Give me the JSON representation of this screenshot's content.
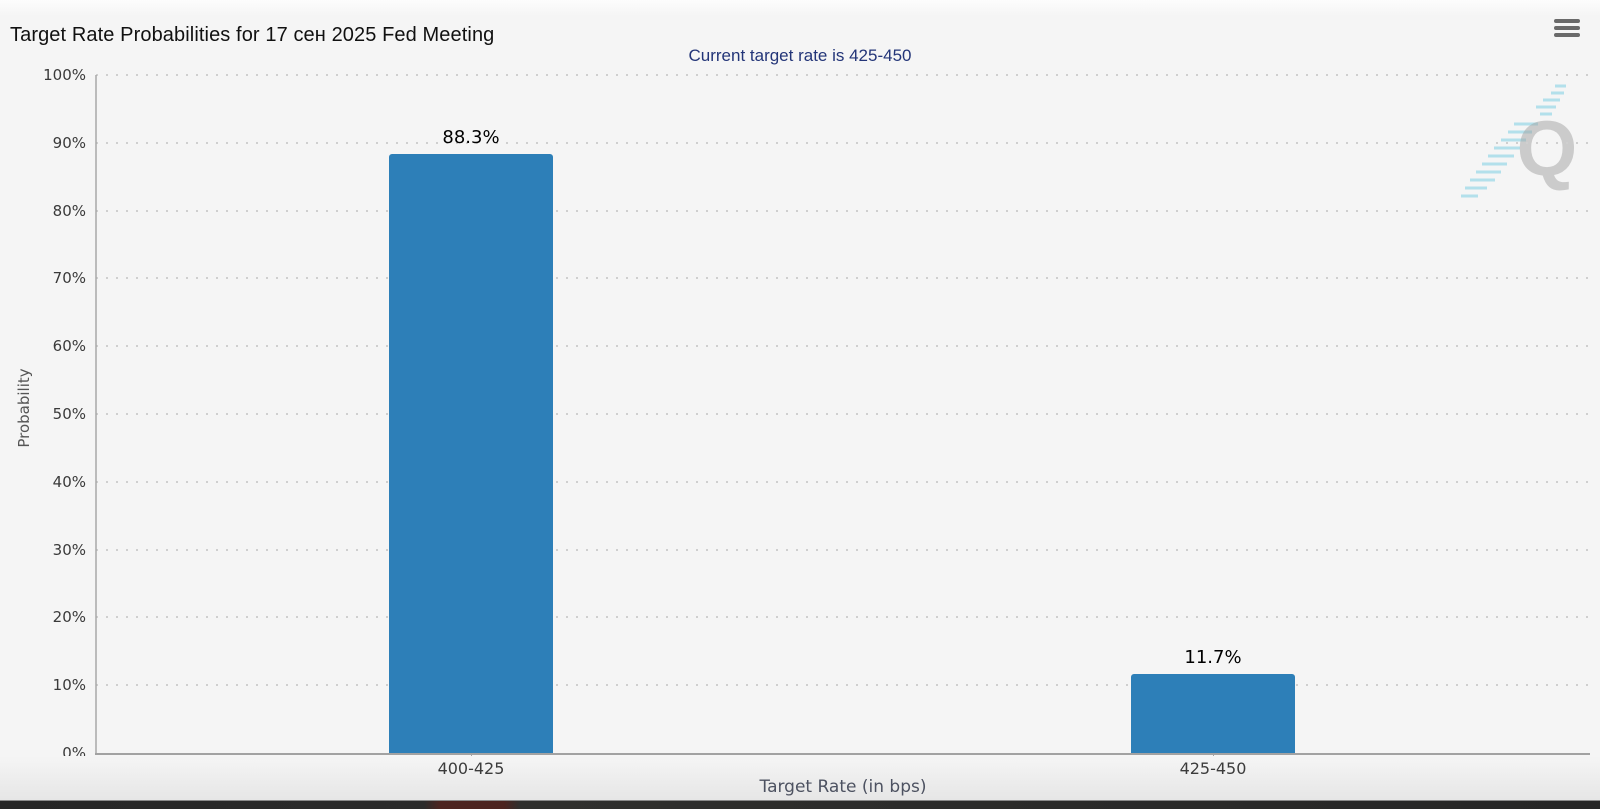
{
  "header": {
    "menu_icon": "hamburger-icon"
  },
  "chart_data": {
    "type": "bar",
    "title": "Target Rate Probabilities for 17 сен 2025 Fed Meeting",
    "subtitle": "Current target rate is 425-450",
    "xlabel": "Target Rate (in bps)",
    "ylabel": "Probability",
    "categories": [
      "400-425",
      "425-450"
    ],
    "values": [
      88.3,
      11.7
    ],
    "value_labels": [
      "88.3%",
      "11.7%"
    ],
    "ylim": [
      0,
      100
    ],
    "ytick_step": 10,
    "ytick_labels": [
      "0%",
      "10%",
      "20%",
      "30%",
      "40%",
      "50%",
      "60%",
      "70%",
      "80%",
      "90%",
      "100%"
    ],
    "grid": "dotted-horizontal",
    "legend": "none"
  },
  "watermark": {
    "letter": "Q"
  },
  "colors": {
    "background": "#f5f5f5",
    "bar": "#2d7fb8",
    "title": "#111111",
    "subtitle": "#233578",
    "grid": "#cfcfcf",
    "axis": "#a2a2a2",
    "tick_label": "#3a3a3a",
    "category_label": "#3c3c3c",
    "value_label": "#000000",
    "y_axis_title": "#555555",
    "x_axis_title": "#4d5261",
    "menu_icon": "#6a6a6a",
    "watermark_letter": "#a3a3a3",
    "watermark_accent": "#7ecfe3"
  }
}
